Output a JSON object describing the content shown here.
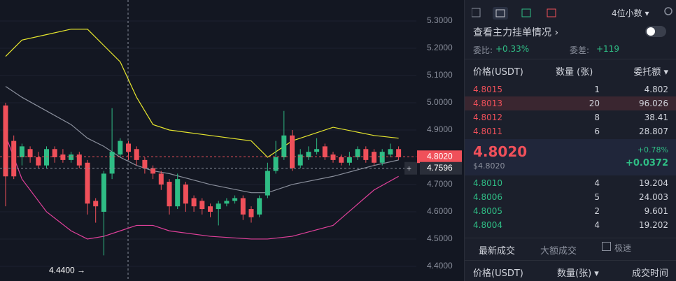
{
  "toolbar": {
    "decimals": "4位小数"
  },
  "chart": {
    "type": "candlestick",
    "ylim": [
      4.346,
      5.377
    ],
    "yticks": [
      {
        "value": 5.3,
        "label": "5.3000"
      },
      {
        "value": 5.2,
        "label": "5.2000"
      },
      {
        "value": 5.1,
        "label": "5.1000"
      },
      {
        "value": 5.0,
        "label": "5.0000"
      },
      {
        "value": 4.9,
        "label": "4.9000"
      },
      {
        "value": 4.7,
        "label": "4.7000"
      },
      {
        "value": 4.6,
        "label": "4.6000"
      },
      {
        "value": 4.5,
        "label": "4.5000"
      },
      {
        "value": 4.4,
        "label": "4.4000"
      }
    ],
    "up_color": "#2fbd85",
    "down_color": "#f0505a",
    "candles": {
      "open": [
        4.99,
        4.86,
        4.8,
        4.83,
        4.8,
        4.77,
        4.83,
        4.81,
        4.79,
        4.81,
        4.78,
        4.64,
        4.6,
        4.74,
        4.81,
        4.85,
        4.83,
        4.79,
        4.76,
        4.74,
        4.71,
        4.62,
        4.7,
        4.65,
        4.64,
        4.62,
        4.61,
        4.63,
        4.64,
        4.65,
        4.61,
        4.59,
        4.66,
        4.75,
        4.8,
        4.88,
        4.77,
        4.8,
        4.82,
        4.84,
        4.81,
        4.8,
        4.78,
        4.8,
        4.83,
        4.82,
        4.78,
        4.81,
        4.83
      ],
      "high": [
        5.0,
        4.88,
        4.85,
        4.84,
        4.82,
        4.84,
        4.84,
        4.83,
        4.82,
        4.82,
        4.79,
        4.65,
        4.75,
        4.98,
        4.87,
        4.86,
        4.84,
        4.8,
        4.77,
        4.75,
        4.72,
        4.74,
        4.71,
        4.66,
        4.65,
        4.63,
        4.64,
        4.65,
        4.66,
        4.66,
        4.62,
        4.66,
        4.78,
        4.86,
        4.97,
        4.9,
        4.83,
        4.84,
        4.87,
        4.85,
        4.82,
        4.81,
        4.82,
        4.84,
        4.84,
        4.83,
        4.83,
        4.85,
        4.84
      ],
      "low": [
        4.62,
        4.72,
        4.77,
        4.78,
        4.76,
        4.76,
        4.78,
        4.78,
        4.78,
        4.76,
        4.59,
        4.56,
        4.44,
        4.72,
        4.8,
        4.79,
        4.77,
        4.74,
        4.72,
        4.68,
        4.59,
        4.61,
        4.6,
        4.6,
        4.59,
        4.58,
        4.55,
        4.62,
        4.63,
        4.57,
        4.56,
        4.58,
        4.65,
        4.74,
        4.79,
        4.75,
        4.76,
        4.79,
        4.81,
        4.79,
        4.78,
        4.77,
        4.77,
        4.79,
        4.78,
        4.77,
        4.77,
        4.8,
        4.79
      ],
      "close": [
        4.73,
        4.73,
        4.84,
        4.8,
        4.77,
        4.83,
        4.8,
        4.79,
        4.81,
        4.77,
        4.63,
        4.62,
        4.74,
        4.82,
        4.86,
        4.82,
        4.79,
        4.76,
        4.74,
        4.7,
        4.62,
        4.72,
        4.63,
        4.62,
        4.61,
        4.6,
        4.63,
        4.64,
        4.65,
        4.59,
        4.58,
        4.65,
        4.75,
        4.8,
        4.88,
        4.76,
        4.81,
        4.82,
        4.83,
        4.8,
        4.79,
        4.78,
        4.8,
        4.83,
        4.79,
        4.78,
        4.82,
        4.83,
        4.8
      ]
    },
    "bands": {
      "x": [
        0,
        2,
        5,
        8,
        10,
        12,
        14,
        16,
        18,
        20,
        25,
        30,
        32,
        35,
        40,
        45,
        48
      ],
      "upper": [
        5.17,
        5.23,
        5.25,
        5.27,
        5.27,
        5.21,
        5.15,
        5.02,
        4.92,
        4.9,
        4.88,
        4.86,
        4.8,
        4.86,
        4.91,
        4.88,
        4.87
      ],
      "middle": [
        5.06,
        5.02,
        4.97,
        4.92,
        4.87,
        4.84,
        4.8,
        4.77,
        4.75,
        4.74,
        4.7,
        4.67,
        4.67,
        4.7,
        4.73,
        4.77,
        4.79
      ],
      "lower": [
        4.88,
        4.72,
        4.6,
        4.53,
        4.5,
        4.51,
        4.53,
        4.55,
        4.55,
        4.53,
        4.51,
        4.5,
        4.5,
        4.51,
        4.55,
        4.68,
        4.73
      ],
      "colors": [
        "#e6e62e",
        "#8a8f9c",
        "#e0409a"
      ]
    },
    "last_price": {
      "value": 4.802,
      "label": "4.8020"
    },
    "crosshair": {
      "value": 4.7596,
      "label": "4.7596"
    },
    "low_marker": {
      "value": 4.44,
      "label": "4.4400 →"
    }
  },
  "depth": {
    "title": "查看主力挂单情况",
    "ratio_label": "委比:",
    "ratio": "+0.33%",
    "diff_label": "委差:",
    "diff": "+119"
  },
  "book": {
    "headers": [
      "价格(USDT)",
      "数量 (张)",
      "委托额"
    ],
    "asks": [
      [
        "4.8015",
        "1",
        "4.802"
      ],
      [
        "4.8013",
        "20",
        "96.026"
      ],
      [
        "4.8012",
        "8",
        "38.41"
      ],
      [
        "4.8011",
        "6",
        "28.807"
      ]
    ],
    "mid": {
      "price": "4.8020",
      "usd": "$4.8020",
      "change_pct": "+0.78%",
      "change": "+0.0372"
    },
    "bids": [
      [
        "4.8010",
        "4",
        "19.204"
      ],
      [
        "4.8006",
        "5",
        "24.003"
      ],
      [
        "4.8005",
        "2",
        "9.601"
      ],
      [
        "4.8004",
        "4",
        "19.202"
      ]
    ]
  },
  "trades": {
    "tabs": [
      "最新成交",
      "大额成交"
    ],
    "fast": "极速",
    "headers": [
      "价格(USDT)",
      "数量(张)",
      "成交时间"
    ]
  }
}
